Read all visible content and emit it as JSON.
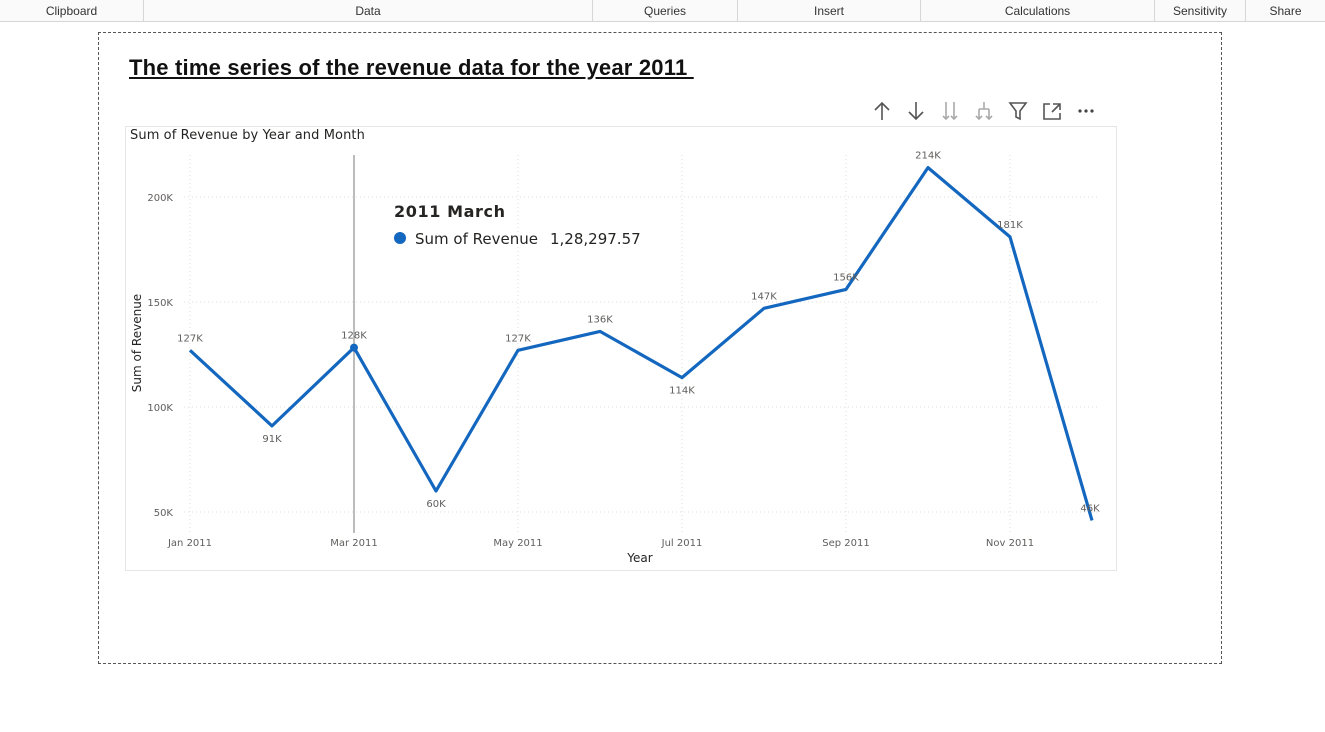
{
  "ribbon": {
    "groups": [
      {
        "label": "Clipboard"
      },
      {
        "label": "Data"
      },
      {
        "label": "Queries"
      },
      {
        "label": "Insert"
      },
      {
        "label": "Calculations"
      },
      {
        "label": "Sensitivity"
      },
      {
        "label": "Share"
      }
    ]
  },
  "report": {
    "title": "The time series of the revenue data for the year 2011 "
  },
  "visual_header": {
    "icons": [
      "arrow-up-icon",
      "arrow-down-icon",
      "double-arrow-down-icon",
      "expand-hierarchy-icon",
      "filter-icon",
      "focus-mode-icon",
      "more-options-icon"
    ]
  },
  "tooltip": {
    "title": "2011 March",
    "series_label": "Sum of Revenue",
    "value": "1,28,297.57"
  },
  "colors": {
    "line": "#1467bf",
    "gridline": "#dcdcdc",
    "crosshair": "#7a7a7a"
  },
  "chart_data": {
    "type": "line",
    "title": "Sum of Revenue by Year and Month",
    "xlabel": "Year",
    "ylabel": "Sum of Revenue",
    "x": [
      "Jan 2011",
      "Feb 2011",
      "Mar 2011",
      "Apr 2011",
      "May 2011",
      "Jun 2011",
      "Jul 2011",
      "Aug 2011",
      "Sep 2011",
      "Oct 2011",
      "Nov 2011",
      "Dec 2011"
    ],
    "x_tick_labels": [
      "Jan 2011",
      "Mar 2011",
      "May 2011",
      "Jul 2011",
      "Sep 2011",
      "Nov 2011"
    ],
    "y_ticks": [
      50000,
      100000,
      150000,
      200000
    ],
    "y_tick_labels": [
      "50K",
      "100K",
      "150K",
      "200K"
    ],
    "ylim": [
      40000,
      220000
    ],
    "grid": true,
    "series": [
      {
        "name": "Sum of Revenue",
        "values": [
          127000,
          91000,
          128297.57,
          60000,
          127000,
          136000,
          114000,
          147000,
          156000,
          214000,
          181000,
          46000
        ],
        "labels": [
          "127K",
          "91K",
          "128K",
          "60K",
          "127K",
          "136K",
          "114K",
          "147K",
          "156K",
          "214K",
          "181K",
          "46K"
        ]
      }
    ],
    "highlighted_index": 2
  }
}
